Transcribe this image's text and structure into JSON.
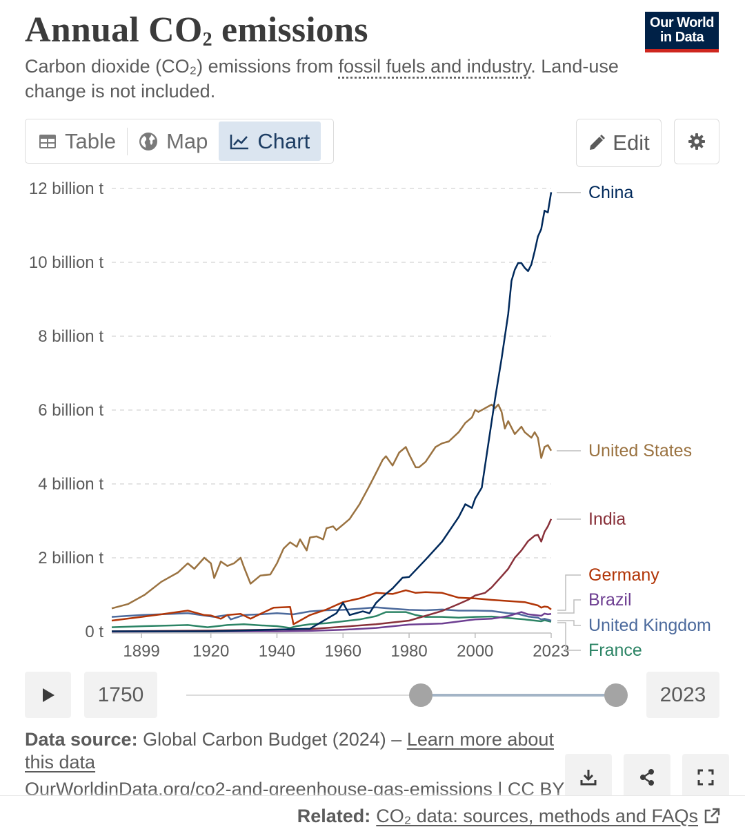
{
  "header": {
    "title": "Annual CO",
    "title_sub": "2",
    "title_rest": " emissions",
    "subtitle_part1": "Carbon dioxide (CO₂) emissions from ",
    "subtitle_link": "fossil fuels and industry",
    "subtitle_part2": ". Land-use change is not included.",
    "logo_line1": "Our World",
    "logo_line2": "in Data"
  },
  "tabs": [
    {
      "label": "Table",
      "icon": "table-icon"
    },
    {
      "label": "Map",
      "icon": "globe-icon"
    },
    {
      "label": "Chart",
      "icon": "line-chart-icon",
      "active": true
    }
  ],
  "toolbar": {
    "edit_label": "Edit",
    "settings_icon": "gear-icon"
  },
  "timeline": {
    "start_year": "1750",
    "end_year": "2023",
    "play_icon": "play-icon"
  },
  "footer": {
    "source_label": "Data source:",
    "source_text": " Global Carbon Budget (2024) – ",
    "learn_more": "Learn more about this data",
    "url": "OurWorldinData.org/co2-and-greenhouse-gas-emissions | CC BY",
    "related_label": "Related:",
    "related_link": "CO₂ data: sources, methods and FAQs"
  },
  "colors": {
    "China": "#00295b",
    "United States": "#9a7240",
    "India": "#883039",
    "Germany": "#b13507",
    "Brazil": "#6d3e91",
    "United Kingdom": "#4c6a9c",
    "France": "#2c8465",
    "grid": "#dcdcdc",
    "accent": "#dbe5f0"
  },
  "chart_data": {
    "type": "line",
    "title": "Annual CO₂ emissions",
    "unit": "t",
    "ylim": [
      0,
      12000000000
    ],
    "xlim": [
      1890,
      2023
    ],
    "y_ticks": [
      0,
      2000000000,
      4000000000,
      6000000000,
      8000000000,
      10000000000,
      12000000000
    ],
    "y_tick_labels": [
      "0 t",
      "2 billion t",
      "4 billion t",
      "6 billion t",
      "8 billion t",
      "10 billion t",
      "12 billion t"
    ],
    "x_ticks": [
      1899,
      1920,
      1940,
      1960,
      1980,
      2000,
      2023
    ],
    "x_tick_labels": [
      "1899",
      "1920",
      "1940",
      "1960",
      "1980",
      "2000",
      "2023"
    ],
    "grid": "horizontal dashed",
    "legend": "line-end labels right",
    "series": [
      {
        "name": "China",
        "unit": "billion t",
        "points": [
          [
            1890,
            0.01
          ],
          [
            1920,
            0.01
          ],
          [
            1950,
            0.08
          ],
          [
            1958,
            0.5
          ],
          [
            1960,
            0.78
          ],
          [
            1962,
            0.45
          ],
          [
            1966,
            0.55
          ],
          [
            1968,
            0.5
          ],
          [
            1970,
            0.78
          ],
          [
            1972,
            0.95
          ],
          [
            1975,
            1.17
          ],
          [
            1978,
            1.46
          ],
          [
            1980,
            1.48
          ],
          [
            1985,
            1.95
          ],
          [
            1990,
            2.44
          ],
          [
            1995,
            3.1
          ],
          [
            1997,
            3.45
          ],
          [
            1999,
            3.35
          ],
          [
            2000,
            3.6
          ],
          [
            2002,
            3.9
          ],
          [
            2004,
            5.1
          ],
          [
            2006,
            6.3
          ],
          [
            2008,
            7.4
          ],
          [
            2010,
            8.6
          ],
          [
            2011,
            9.5
          ],
          [
            2012,
            9.8
          ],
          [
            2013,
            9.98
          ],
          [
            2014,
            9.98
          ],
          [
            2015,
            9.85
          ],
          [
            2016,
            9.76
          ],
          [
            2017,
            9.94
          ],
          [
            2018,
            10.3
          ],
          [
            2019,
            10.7
          ],
          [
            2020,
            10.9
          ],
          [
            2021,
            11.4
          ],
          [
            2022,
            11.35
          ],
          [
            2023,
            11.9
          ]
        ]
      },
      {
        "name": "United States",
        "unit": "billion t",
        "points": [
          [
            1890,
            0.63
          ],
          [
            1895,
            0.75
          ],
          [
            1899,
            0.95
          ],
          [
            1900,
            1.0
          ],
          [
            1905,
            1.35
          ],
          [
            1910,
            1.6
          ],
          [
            1913,
            1.85
          ],
          [
            1915,
            1.7
          ],
          [
            1918,
            2.0
          ],
          [
            1920,
            1.85
          ],
          [
            1921,
            1.45
          ],
          [
            1923,
            1.9
          ],
          [
            1925,
            1.78
          ],
          [
            1927,
            1.85
          ],
          [
            1929,
            2.0
          ],
          [
            1930,
            1.75
          ],
          [
            1932,
            1.3
          ],
          [
            1935,
            1.52
          ],
          [
            1938,
            1.55
          ],
          [
            1940,
            1.85
          ],
          [
            1942,
            2.25
          ],
          [
            1944,
            2.42
          ],
          [
            1946,
            2.3
          ],
          [
            1947,
            2.5
          ],
          [
            1949,
            2.2
          ],
          [
            1950,
            2.55
          ],
          [
            1952,
            2.58
          ],
          [
            1954,
            2.5
          ],
          [
            1955,
            2.8
          ],
          [
            1957,
            2.85
          ],
          [
            1958,
            2.75
          ],
          [
            1960,
            2.9
          ],
          [
            1962,
            3.05
          ],
          [
            1965,
            3.45
          ],
          [
            1968,
            3.95
          ],
          [
            1970,
            4.3
          ],
          [
            1972,
            4.65
          ],
          [
            1973,
            4.75
          ],
          [
            1975,
            4.5
          ],
          [
            1977,
            4.85
          ],
          [
            1979,
            5.0
          ],
          [
            1980,
            4.8
          ],
          [
            1982,
            4.45
          ],
          [
            1983,
            4.45
          ],
          [
            1985,
            4.6
          ],
          [
            1988,
            5.0
          ],
          [
            1990,
            5.1
          ],
          [
            1992,
            5.15
          ],
          [
            1995,
            5.4
          ],
          [
            1997,
            5.65
          ],
          [
            1999,
            5.8
          ],
          [
            2000,
            6.0
          ],
          [
            2001,
            5.95
          ],
          [
            2003,
            6.05
          ],
          [
            2005,
            6.15
          ],
          [
            2006,
            6.05
          ],
          [
            2007,
            6.15
          ],
          [
            2008,
            5.95
          ],
          [
            2009,
            5.5
          ],
          [
            2010,
            5.7
          ],
          [
            2012,
            5.35
          ],
          [
            2014,
            5.55
          ],
          [
            2015,
            5.4
          ],
          [
            2017,
            5.25
          ],
          [
            2018,
            5.4
          ],
          [
            2019,
            5.25
          ],
          [
            2020,
            4.7
          ],
          [
            2021,
            5.0
          ],
          [
            2022,
            5.05
          ],
          [
            2023,
            4.9
          ]
        ]
      },
      {
        "name": "India",
        "unit": "billion t",
        "points": [
          [
            1890,
            0.01
          ],
          [
            1920,
            0.03
          ],
          [
            1950,
            0.07
          ],
          [
            1970,
            0.2
          ],
          [
            1980,
            0.3
          ],
          [
            1990,
            0.56
          ],
          [
            1995,
            0.75
          ],
          [
            1998,
            0.87
          ],
          [
            2000,
            0.98
          ],
          [
            2003,
            1.05
          ],
          [
            2005,
            1.2
          ],
          [
            2008,
            1.5
          ],
          [
            2010,
            1.7
          ],
          [
            2012,
            2.0
          ],
          [
            2014,
            2.2
          ],
          [
            2016,
            2.45
          ],
          [
            2018,
            2.6
          ],
          [
            2019,
            2.62
          ],
          [
            2020,
            2.44
          ],
          [
            2021,
            2.7
          ],
          [
            2022,
            2.85
          ],
          [
            2023,
            3.05
          ]
        ]
      },
      {
        "name": "Germany",
        "unit": "billion t",
        "points": [
          [
            1890,
            0.3
          ],
          [
            1899,
            0.4
          ],
          [
            1905,
            0.47
          ],
          [
            1913,
            0.57
          ],
          [
            1918,
            0.45
          ],
          [
            1920,
            0.44
          ],
          [
            1923,
            0.35
          ],
          [
            1925,
            0.45
          ],
          [
            1929,
            0.48
          ],
          [
            1932,
            0.35
          ],
          [
            1935,
            0.48
          ],
          [
            1939,
            0.65
          ],
          [
            1944,
            0.67
          ],
          [
            1945,
            0.2
          ],
          [
            1946,
            0.25
          ],
          [
            1950,
            0.45
          ],
          [
            1955,
            0.6
          ],
          [
            1960,
            0.8
          ],
          [
            1965,
            0.9
          ],
          [
            1970,
            1.05
          ],
          [
            1975,
            1.02
          ],
          [
            1979,
            1.12
          ],
          [
            1982,
            1.05
          ],
          [
            1985,
            1.07
          ],
          [
            1990,
            1.05
          ],
          [
            1995,
            0.92
          ],
          [
            2000,
            0.9
          ],
          [
            2005,
            0.86
          ],
          [
            2010,
            0.83
          ],
          [
            2015,
            0.8
          ],
          [
            2019,
            0.71
          ],
          [
            2020,
            0.65
          ],
          [
            2021,
            0.68
          ],
          [
            2022,
            0.67
          ],
          [
            2023,
            0.6
          ]
        ]
      },
      {
        "name": "Brazil",
        "unit": "billion t",
        "points": [
          [
            1890,
            0.0
          ],
          [
            1940,
            0.01
          ],
          [
            1950,
            0.02
          ],
          [
            1960,
            0.05
          ],
          [
            1970,
            0.1
          ],
          [
            1980,
            0.19
          ],
          [
            1990,
            0.22
          ],
          [
            2000,
            0.33
          ],
          [
            2005,
            0.35
          ],
          [
            2010,
            0.42
          ],
          [
            2014,
            0.53
          ],
          [
            2016,
            0.47
          ],
          [
            2018,
            0.45
          ],
          [
            2020,
            0.43
          ],
          [
            2021,
            0.49
          ],
          [
            2022,
            0.47
          ],
          [
            2023,
            0.48
          ]
        ]
      },
      {
        "name": "United Kingdom",
        "unit": "billion t",
        "points": [
          [
            1890,
            0.4
          ],
          [
            1899,
            0.45
          ],
          [
            1913,
            0.5
          ],
          [
            1921,
            0.4
          ],
          [
            1925,
            0.45
          ],
          [
            1926,
            0.33
          ],
          [
            1930,
            0.45
          ],
          [
            1935,
            0.47
          ],
          [
            1940,
            0.5
          ],
          [
            1945,
            0.47
          ],
          [
            1950,
            0.55
          ],
          [
            1955,
            0.58
          ],
          [
            1960,
            0.59
          ],
          [
            1965,
            0.62
          ],
          [
            1970,
            0.66
          ],
          [
            1975,
            0.62
          ],
          [
            1980,
            0.59
          ],
          [
            1985,
            0.58
          ],
          [
            1990,
            0.6
          ],
          [
            1995,
            0.57
          ],
          [
            2000,
            0.57
          ],
          [
            2005,
            0.56
          ],
          [
            2010,
            0.5
          ],
          [
            2013,
            0.48
          ],
          [
            2016,
            0.41
          ],
          [
            2019,
            0.38
          ],
          [
            2020,
            0.33
          ],
          [
            2021,
            0.35
          ],
          [
            2023,
            0.3
          ]
        ]
      },
      {
        "name": "France",
        "unit": "billion t",
        "points": [
          [
            1890,
            0.12
          ],
          [
            1900,
            0.15
          ],
          [
            1913,
            0.18
          ],
          [
            1919,
            0.12
          ],
          [
            1925,
            0.18
          ],
          [
            1930,
            0.2
          ],
          [
            1935,
            0.17
          ],
          [
            1940,
            0.15
          ],
          [
            1944,
            0.1
          ],
          [
            1946,
            0.15
          ],
          [
            1950,
            0.2
          ],
          [
            1955,
            0.23
          ],
          [
            1960,
            0.28
          ],
          [
            1965,
            0.33
          ],
          [
            1970,
            0.42
          ],
          [
            1973,
            0.53
          ],
          [
            1979,
            0.53
          ],
          [
            1982,
            0.45
          ],
          [
            1985,
            0.4
          ],
          [
            1990,
            0.4
          ],
          [
            1995,
            0.38
          ],
          [
            2000,
            0.4
          ],
          [
            2005,
            0.41
          ],
          [
            2010,
            0.37
          ],
          [
            2015,
            0.33
          ],
          [
            2020,
            0.28
          ],
          [
            2021,
            0.31
          ],
          [
            2023,
            0.27
          ]
        ]
      }
    ]
  }
}
